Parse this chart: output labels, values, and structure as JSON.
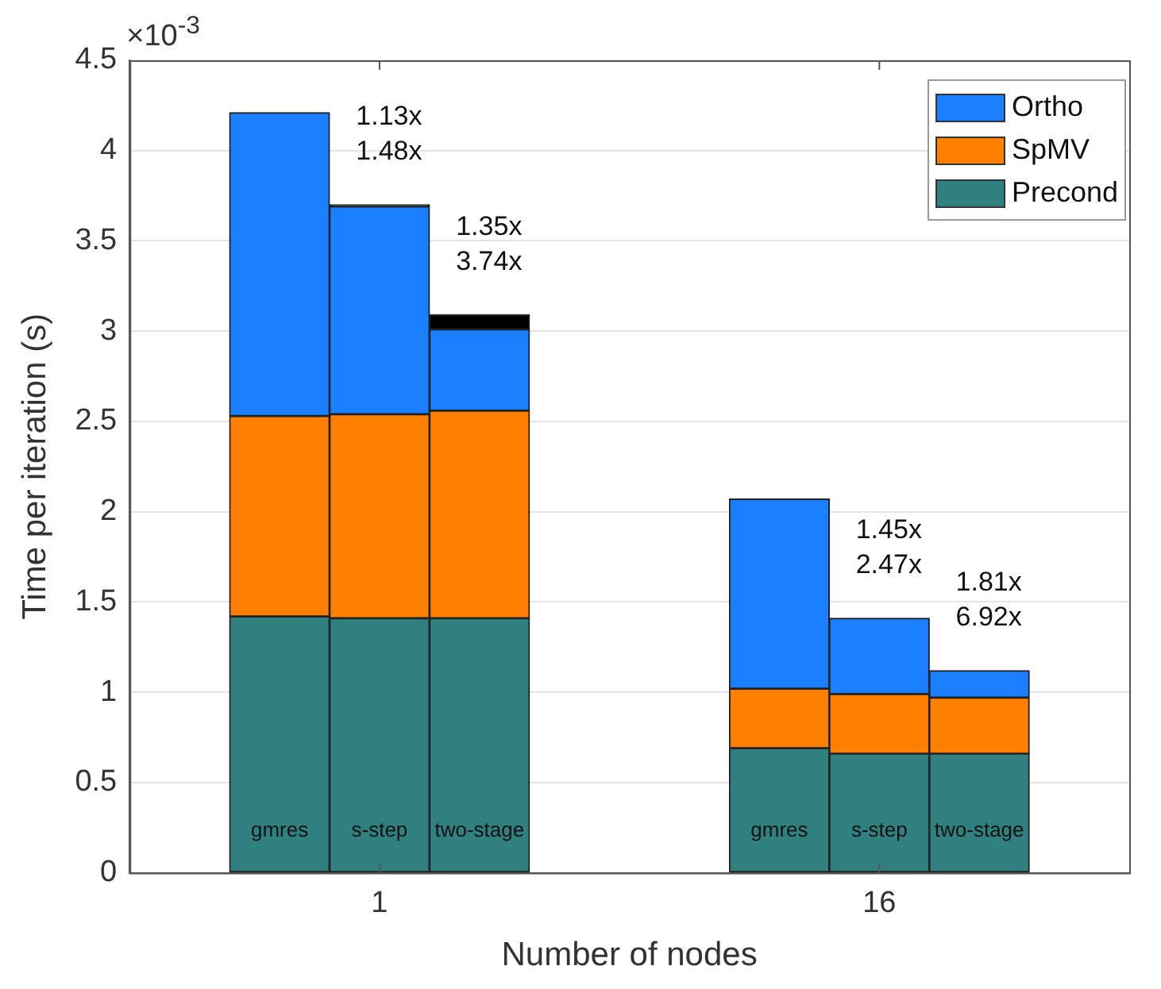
{
  "chart_data": {
    "type": "bar",
    "xlabel": "Number of nodes",
    "ylabel": "Time per iteration (s)",
    "categories": [
      null,
      "gmres",
      "s-step",
      "two-stage",
      null,
      null,
      "gmres",
      "s-step",
      "two-stage",
      null
    ],
    "stacked": true,
    "series": [
      {
        "name": "Precond",
        "color": "#318080",
        "values": [
          null,
          1.42,
          1.41,
          1.41,
          null,
          null,
          0.69,
          0.66,
          0.66,
          null
        ]
      },
      {
        "name": "SpMV",
        "color": "#ff8000",
        "values": [
          null,
          1.11,
          1.13,
          1.15,
          null,
          null,
          0.33,
          0.33,
          0.31,
          null
        ]
      },
      {
        "name": "Ortho",
        "color": "#1a80ff",
        "values": [
          null,
          1.68,
          1.15,
          0.45,
          null,
          null,
          1.05,
          0.42,
          0.15,
          null
        ]
      },
      {
        "color": "#000000",
        "values": [
          null,
          null,
          0.01,
          0.08,
          null,
          null,
          null,
          null,
          null,
          null
        ]
      }
    ],
    "ylim": [
      0,
      4.5
    ],
    "yticks": [
      0,
      0.5,
      1,
      1.5,
      2,
      2.5,
      3,
      3.5,
      4,
      4.5
    ],
    "grid": "y",
    "legend": "top right",
    "annotations": [
      "×10$^{-3}$",
      "1",
      "16",
      "1.13x\n1.48x",
      "1.35x\n3.74x",
      "1.45x\n2.47x",
      "1.81x\n6.92x"
    ]
  }
}
